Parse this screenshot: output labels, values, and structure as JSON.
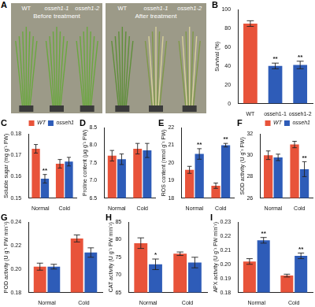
{
  "photo_panel": {
    "panel": "A",
    "labels": [
      "WT",
      "osseh1-1",
      "osseh1-2"
    ],
    "before": "Before treatment",
    "after": "After treatment"
  },
  "chart_data": [
    {
      "panel": "B",
      "type": "bar",
      "y_label": "Survival (%)",
      "categories": [
        "WT",
        "osseh1-1",
        "osseh1-2"
      ],
      "values": [
        85,
        40,
        41
      ],
      "errors": [
        3,
        3,
        4
      ],
      "significance": [
        null,
        "**",
        "**"
      ],
      "colors": [
        "#e8533a",
        "#2e5cb8",
        "#2e5cb8"
      ],
      "ylim": [
        0,
        100
      ],
      "yticks": [
        0,
        20,
        40,
        60,
        80,
        100
      ],
      "grid": false
    },
    {
      "panel": "C",
      "type": "bar",
      "y_label": "Soluble sugar (mg g⁻¹ FW)",
      "categories": [
        "Normal",
        "Cold"
      ],
      "series": [
        {
          "name": "WT",
          "color": "#e8533a",
          "values": [
            0.173,
            0.166
          ],
          "errors": [
            0.002,
            0.002
          ],
          "significance": [
            null,
            null
          ]
        },
        {
          "name": "osseh1",
          "color": "#2e5cb8",
          "values": [
            0.159,
            0.167
          ],
          "errors": [
            0.002,
            0.002
          ],
          "significance": [
            "**",
            null
          ]
        }
      ],
      "ylim": [
        0.15,
        0.18
      ],
      "yticks": [
        0.15,
        0.16,
        0.17,
        0.18
      ],
      "grid": false,
      "legend": "upper right"
    },
    {
      "panel": "D",
      "type": "bar",
      "y_label": "Proline content (µg g⁻¹ FW)",
      "categories": [
        "Normal",
        "Cold"
      ],
      "series": [
        {
          "name": "WT",
          "color": "#e8533a",
          "values": [
            7.7,
            7.9
          ],
          "errors": [
            0.15,
            0.15
          ],
          "significance": [
            null,
            null
          ]
        },
        {
          "name": "osseh1",
          "color": "#2e5cb8",
          "values": [
            7.6,
            7.85
          ],
          "errors": [
            0.15,
            0.2
          ],
          "significance": [
            null,
            null
          ]
        }
      ],
      "ylim": [
        6.5,
        8.5
      ],
      "yticks": [
        6.5,
        {
          "value": 7,
          "label": "7.0"
        },
        7.5,
        {
          "value": 8,
          "label": "8.0"
        },
        8.5
      ],
      "grid": false
    },
    {
      "panel": "E",
      "type": "bar",
      "y_label": "ROS content (nmol g⁻¹ FW)",
      "categories": [
        "Normal",
        "Cold"
      ],
      "series": [
        {
          "name": "WT",
          "color": "#e8533a",
          "values": [
            19.6,
            18.7
          ],
          "errors": [
            0.2,
            0.15
          ],
          "significance": [
            null,
            null
          ]
        },
        {
          "name": "osseh1",
          "color": "#2e5cb8",
          "values": [
            20.5,
            21.0
          ],
          "errors": [
            0.3,
            0.1
          ],
          "significance": [
            "**",
            "**"
          ]
        }
      ],
      "ylim": [
        18,
        22
      ],
      "yticks": [
        18,
        19,
        20,
        21,
        22
      ],
      "grid": false
    },
    {
      "panel": "F",
      "type": "bar",
      "y_label": "SOD activity (U g⁻¹ FW)",
      "categories": [
        "Normal",
        "Cold"
      ],
      "series": [
        {
          "name": "WT",
          "color": "#e8533a",
          "values": [
            30.0,
            31.0
          ],
          "errors": [
            0.4,
            0.3
          ],
          "significance": [
            null,
            null
          ]
        },
        {
          "name": "osseh1",
          "color": "#2e5cb8",
          "values": [
            29.8,
            28.7
          ],
          "errors": [
            0.3,
            0.7
          ],
          "significance": [
            null,
            "**"
          ]
        }
      ],
      "ylim": [
        26,
        32
      ],
      "yticks": [
        26,
        28,
        30,
        32
      ],
      "grid": false,
      "legend": "upper right"
    },
    {
      "panel": "G",
      "type": "bar",
      "y_label": "POD activity (U g⁻¹ FW min⁻¹)",
      "categories": [
        "Normal",
        "Cold"
      ],
      "series": [
        {
          "name": "WT",
          "color": "#e8533a",
          "values": [
            0.202,
            0.226
          ],
          "errors": [
            0.003,
            0.003
          ],
          "significance": [
            null,
            null
          ]
        },
        {
          "name": "osseh1",
          "color": "#2e5cb8",
          "values": [
            0.202,
            0.214
          ],
          "errors": [
            0.002,
            0.004
          ],
          "significance": [
            null,
            null
          ]
        }
      ],
      "ylim": [
        0.18,
        0.24
      ],
      "yticks": [
        0.18,
        {
          "value": 0.2,
          "label": "0.20"
        },
        0.22,
        0.24
      ],
      "grid": false
    },
    {
      "panel": "H",
      "type": "bar",
      "y_label": "CAT activity (U g⁻¹ FW min⁻¹)",
      "categories": [
        "Normal",
        "Cold"
      ],
      "series": [
        {
          "name": "WT",
          "color": "#e8533a",
          "values": [
            79,
            76
          ],
          "errors": [
            1.5,
            0.5
          ],
          "significance": [
            null,
            null
          ]
        },
        {
          "name": "osseh1",
          "color": "#2e5cb8",
          "values": [
            73,
            73.5
          ],
          "errors": [
            1.5,
            1.5
          ],
          "significance": [
            "*",
            null
          ]
        }
      ],
      "ylim": [
        65,
        85
      ],
      "yticks": [
        65,
        70,
        75,
        80,
        85
      ],
      "grid": false
    },
    {
      "panel": "I",
      "type": "bar",
      "y_label": "APX activity (U g⁻¹ FW min⁻¹)",
      "categories": [
        "Normal",
        "Cold"
      ],
      "series": [
        {
          "name": "WT",
          "color": "#e8533a",
          "values": [
            0.202,
            0.192
          ],
          "errors": [
            0.002,
            0.001
          ],
          "significance": [
            null,
            null
          ]
        },
        {
          "name": "osseh1",
          "color": "#2e5cb8",
          "values": [
            0.217,
            0.206
          ],
          "errors": [
            0.002,
            0.002
          ],
          "significance": [
            "**",
            "**"
          ]
        }
      ],
      "ylim": [
        0.18,
        0.23
      ],
      "yticks": [
        0.18,
        0.19,
        {
          "value": 0.2,
          "label": "0.20"
        },
        0.21,
        0.22,
        0.23
      ],
      "grid": false
    }
  ]
}
